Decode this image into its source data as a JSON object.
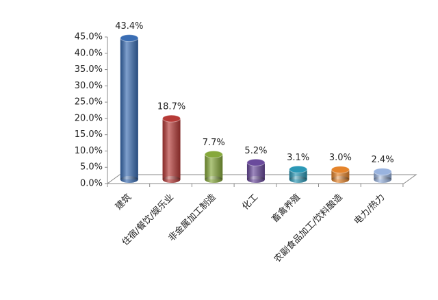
{
  "chart_data": {
    "type": "bar",
    "categories": [
      "建筑",
      "住宿/餐饮/娱乐业",
      "非金属加工制造",
      "化工",
      "畜禽养殖",
      "农副食品加工/饮料酿造",
      "电力/热力"
    ],
    "values": [
      43.4,
      18.7,
      7.7,
      5.2,
      3.1,
      3.0,
      2.4
    ],
    "value_labels": [
      "43.4%",
      "18.7%",
      "7.7%",
      "5.2%",
      "3.1%",
      "3.0%",
      "2.4%"
    ],
    "colors": [
      "#3a6db3",
      "#b63a37",
      "#86a83b",
      "#6a4a9c",
      "#2b98b6",
      "#e5842b",
      "#99b3df"
    ],
    "ylim": [
      0,
      45
    ],
    "yticks": [
      {
        "value": 0,
        "label": "0.0%"
      },
      {
        "value": 5,
        "label": "5.0%"
      },
      {
        "value": 10,
        "label": "10.0%"
      },
      {
        "value": 15,
        "label": "15.0%"
      },
      {
        "value": 20,
        "label": "20.0%"
      },
      {
        "value": 25,
        "label": "25.0%"
      },
      {
        "value": 30,
        "label": "30.0%"
      },
      {
        "value": 35,
        "label": "35.0%"
      },
      {
        "value": 40,
        "label": "40.0%"
      },
      {
        "value": 45,
        "label": "45.0%"
      }
    ]
  }
}
